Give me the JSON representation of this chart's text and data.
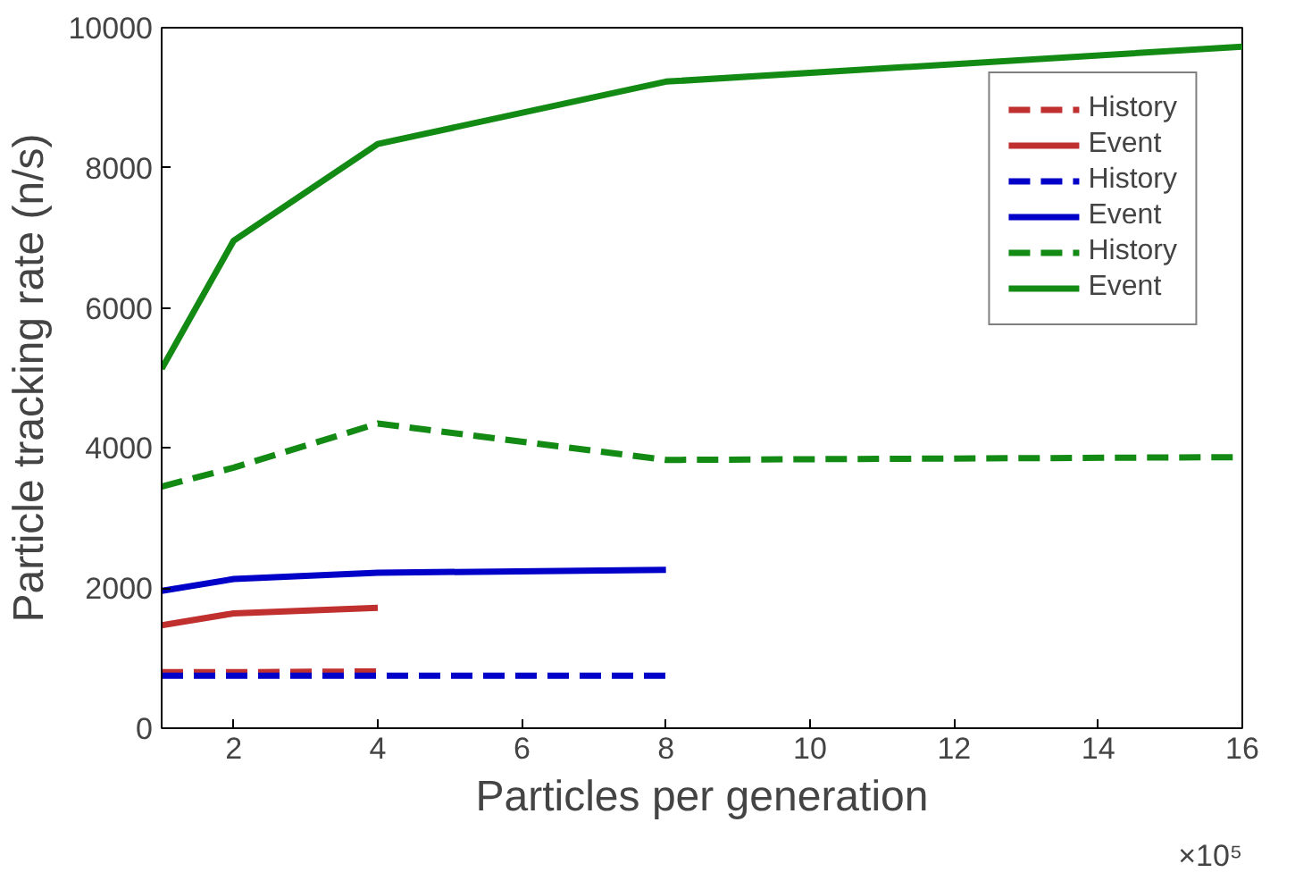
{
  "chart_data": {
    "type": "line",
    "xlabel": "Particles per generation",
    "ylabel": "Particle tracking rate (n/s)",
    "xlim": [
      1,
      16
    ],
    "xticks": [
      2,
      4,
      6,
      8,
      10,
      12,
      14,
      16
    ],
    "ylim": [
      0,
      10000
    ],
    "yticks": [
      0,
      2000,
      4000,
      6000,
      8000,
      10000
    ],
    "grid": false,
    "legend": "top right",
    "annotations": [
      "×10⁵"
    ],
    "series": [
      {
        "name": "History",
        "color": "#c0302e",
        "line_style": "dashed",
        "x": [
          1,
          2,
          4
        ],
        "values": [
          800,
          800,
          810
        ]
      },
      {
        "name": "Event",
        "color": "#c0302e",
        "line_style": "solid",
        "x": [
          1,
          2,
          4
        ],
        "values": [
          1470,
          1640,
          1720
        ]
      },
      {
        "name": "History",
        "color": "#0000c8",
        "line_style": "dashed",
        "x": [
          1,
          2,
          4,
          8
        ],
        "values": [
          750,
          750,
          750,
          750
        ]
      },
      {
        "name": "Event",
        "color": "#0000c8",
        "line_style": "solid",
        "x": [
          1,
          2,
          4,
          8
        ],
        "values": [
          1960,
          2130,
          2220,
          2260
        ]
      },
      {
        "name": "History",
        "color": "#138a13",
        "line_style": "dashed",
        "x": [
          1,
          2,
          4,
          8,
          16
        ],
        "values": [
          3450,
          3720,
          4350,
          3830,
          3870
        ]
      },
      {
        "name": "Event",
        "color": "#138a13",
        "line_style": "solid",
        "x": [
          1,
          2,
          4,
          8,
          16
        ],
        "values": [
          5130,
          6960,
          8340,
          9230,
          9730
        ]
      }
    ]
  }
}
